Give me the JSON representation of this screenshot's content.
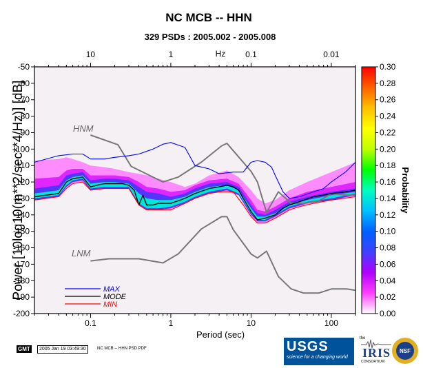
{
  "chart_data": {
    "type": "heatmap",
    "title": "NC MCB -- HHN",
    "subtitle": "329 PSDs : 2005.002 - 2005.008",
    "xlabel": "Period (sec)",
    "ylabel": "Power [10log10(m**2/sec**4/Hz)] [dB]",
    "top_axis_label": "Hz",
    "xscale": "log",
    "xlim": [
      0.02,
      200
    ],
    "ylim": [
      -200,
      -50
    ],
    "x_tick_labels": [
      "0.1",
      "1",
      "10",
      "100"
    ],
    "x_tick_values": [
      0.1,
      1,
      10,
      100
    ],
    "top_tick_labels": [
      "10",
      "1",
      "0.1",
      "0.01"
    ],
    "top_tick_periods": [
      0.1,
      1,
      10,
      100
    ],
    "y_tick_values": [
      -50,
      -60,
      -70,
      -80,
      -90,
      -100,
      -110,
      -120,
      -130,
      -140,
      -150,
      -160,
      -170,
      -180,
      -190,
      -200
    ],
    "colorbar": {
      "label": "Probability",
      "range": [
        0,
        0.3
      ],
      "tick_labels": [
        "0.00",
        "0.02",
        "0.04",
        "0.06",
        "0.08",
        "0.10",
        "0.12",
        "0.14",
        "0.16",
        "0.18",
        "0.20",
        "0.22",
        "0.24",
        "0.26",
        "0.28",
        "0.30"
      ],
      "tick_values": [
        0,
        0.02,
        0.04,
        0.06,
        0.08,
        0.1,
        0.12,
        0.14,
        0.16,
        0.18,
        0.2,
        0.22,
        0.24,
        0.26,
        0.28,
        0.3
      ],
      "colors": [
        "#ffffff",
        "#ff40ff",
        "#b000ff",
        "#4040ff",
        "#0060ff",
        "#00c0ff",
        "#00ffc0",
        "#00ff00",
        "#c0ff00",
        "#ffff00",
        "#ffc000",
        "#ff6000",
        "#ff0000"
      ]
    },
    "series": [
      {
        "name": "MAX",
        "color": "#0000ff",
        "x": [
          0.02,
          0.04,
          0.06,
          0.08,
          0.1,
          0.15,
          0.2,
          0.3,
          0.4,
          0.6,
          0.8,
          1.0,
          1.5,
          2.0,
          3.0,
          4.0,
          6.0,
          8.0,
          10.0,
          12.0,
          15.0,
          18.0,
          20.0,
          25.0,
          30.0,
          40.0,
          60.0,
          80.0,
          100.0,
          150.0,
          200.0
        ],
        "y": [
          -108,
          -104,
          -103,
          -103,
          -106,
          -106,
          -105,
          -104,
          -103,
          -100,
          -97,
          -96,
          -99,
          -110,
          -112,
          -115,
          -114,
          -114,
          -108,
          -107,
          -108,
          -111,
          -116,
          -126,
          -130,
          -129,
          -126,
          -124,
          -120,
          -114,
          -108
        ]
      },
      {
        "name": "MODE",
        "color": "#000000",
        "x": [
          0.02,
          0.04,
          0.05,
          0.06,
          0.08,
          0.1,
          0.12,
          0.15,
          0.2,
          0.25,
          0.3,
          0.35,
          0.4,
          0.45,
          0.5,
          0.6,
          0.7,
          0.8,
          1.0,
          1.5,
          2.0,
          3.0,
          4.0,
          5.0,
          6.0,
          7.0,
          8.0,
          10.0,
          12.0,
          15.0,
          20.0,
          25.0,
          30.0,
          40.0,
          60.0,
          80.0,
          100.0,
          150.0,
          200.0
        ],
        "y": [
          -129,
          -127,
          -120,
          -118,
          -117,
          -123,
          -122,
          -121,
          -121,
          -121,
          -122,
          -125,
          -134,
          -128,
          -134,
          -134,
          -133,
          -133,
          -133,
          -130,
          -127,
          -124,
          -123,
          -122,
          -123,
          -125,
          -130,
          -138,
          -143,
          -142,
          -140,
          -136,
          -134,
          -132,
          -129,
          -128,
          -127,
          -126,
          -125
        ]
      },
      {
        "name": "MIN",
        "color": "#ff0000",
        "x": [
          0.02,
          0.04,
          0.05,
          0.06,
          0.08,
          0.1,
          0.15,
          0.2,
          0.3,
          0.4,
          0.5,
          0.7,
          1.0,
          1.5,
          2.0,
          3.0,
          4.0,
          6.0,
          8.0,
          10.0,
          12.0,
          15.0,
          20.0,
          30.0,
          40.0,
          60.0,
          100.0,
          200.0
        ],
        "y": [
          -131,
          -129,
          -124,
          -121,
          -120,
          -125,
          -124,
          -124,
          -124,
          -134,
          -137,
          -137,
          -137,
          -133,
          -130,
          -127,
          -126,
          -126,
          -134,
          -141,
          -145,
          -145,
          -142,
          -137,
          -135,
          -133,
          -131,
          -129
        ]
      }
    ],
    "models": [
      {
        "name": "HNM",
        "color": "#777777",
        "x": [
          0.1,
          0.22,
          0.32,
          0.8,
          1.24,
          2.4,
          4.3,
          5.0,
          6.0,
          10.0,
          12.0,
          15.6,
          21.9,
          31.6,
          45.0,
          70.0,
          101.0,
          154.0,
          328.0
        ],
        "y": [
          -91.5,
          -97.4,
          -110.5,
          -120.0,
          -117.0,
          -108.0,
          -98.0,
          -96.5,
          -101.0,
          -113.5,
          -120.0,
          -138.5,
          -126.0,
          -133.0,
          -133.0,
          -131.5,
          -127.0,
          -128.0,
          -128.0
        ]
      },
      {
        "name": "LNM",
        "color": "#777777",
        "x": [
          0.1,
          0.17,
          0.4,
          0.8,
          1.24,
          2.4,
          4.3,
          5.0,
          6.0,
          10.0,
          12.0,
          15.6,
          21.9,
          31.6,
          45.0,
          70.0,
          101.0,
          154.0,
          328.0
        ],
        "y": [
          -168.0,
          -166.7,
          -166.7,
          -169.2,
          -163.7,
          -148.6,
          -141.1,
          -141.1,
          -149.0,
          -163.8,
          -166.2,
          -162.1,
          -177.5,
          -185.0,
          -187.5,
          -187.5,
          -185.0,
          -185.0,
          -187.5
        ]
      }
    ],
    "heat_bands": [
      {
        "x": [
          0.02,
          0.04,
          0.05,
          0.06,
          0.08,
          0.1,
          0.15,
          0.2,
          0.3,
          0.4,
          0.5,
          0.7,
          1.0,
          1.5,
          2.0,
          3.0,
          5.0,
          7.0,
          10.0,
          12.0,
          15.0,
          20.0,
          30.0,
          50.0,
          100.0,
          200.0
        ],
        "low": [
          -131,
          -129,
          -124,
          -121,
          -120,
          -125,
          -124,
          -124,
          -124,
          -134,
          -137,
          -137,
          -137,
          -133,
          -130,
          -127,
          -126,
          -128,
          -141,
          -145,
          -145,
          -142,
          -137,
          -134,
          -131,
          -129
        ],
        "high": [
          -107,
          -106,
          -105,
          -106,
          -108,
          -110,
          -111,
          -112,
          -114,
          -115,
          -116,
          -118,
          -120,
          -123,
          -121,
          -116,
          -113,
          -117,
          -125,
          -130,
          -133,
          -131,
          -125,
          -120,
          -114,
          -108
        ],
        "probability": 0.015
      },
      {
        "x": [
          0.02,
          0.04,
          0.05,
          0.06,
          0.08,
          0.1,
          0.15,
          0.2,
          0.3,
          0.4,
          0.5,
          0.7,
          1.0,
          1.5,
          2.0,
          3.0,
          5.0,
          7.0,
          10.0,
          12.0,
          15.0,
          20.0,
          30.0,
          50.0,
          100.0,
          200.0
        ],
        "low": [
          -130,
          -128,
          -123,
          -120,
          -119,
          -124,
          -123,
          -123,
          -123,
          -133,
          -136,
          -136,
          -135,
          -132,
          -129,
          -126,
          -125,
          -127,
          -139,
          -143,
          -143,
          -141,
          -136,
          -133,
          -130,
          -128
        ],
        "high": [
          -118,
          -117,
          -113,
          -112,
          -112,
          -116,
          -116,
          -116,
          -117,
          -120,
          -123,
          -124,
          -126,
          -125,
          -122,
          -119,
          -118,
          -121,
          -131,
          -137,
          -138,
          -135,
          -130,
          -126,
          -123,
          -120
        ],
        "probability": 0.035
      },
      {
        "x": [
          0.02,
          0.04,
          0.05,
          0.06,
          0.08,
          0.1,
          0.15,
          0.2,
          0.3,
          0.4,
          0.5,
          0.7,
          1.0,
          1.5,
          2.0,
          3.0,
          5.0,
          7.0,
          10.0,
          12.0,
          15.0,
          20.0,
          30.0,
          50.0,
          100.0,
          200.0
        ],
        "low": [
          -131,
          -129,
          -123,
          -120,
          -119,
          -125,
          -124,
          -124,
          -124,
          -134,
          -137,
          -137,
          -136,
          -133,
          -130,
          -127,
          -125,
          -128,
          -140,
          -144,
          -144,
          -141,
          -136,
          -133,
          -131,
          -128
        ],
        "high": [
          -124,
          -122,
          -116,
          -115,
          -114,
          -119,
          -118,
          -118,
          -119,
          -123,
          -126,
          -127,
          -129,
          -127,
          -124,
          -121,
          -120,
          -123,
          -134,
          -139,
          -140,
          -137,
          -132,
          -129,
          -126,
          -124
        ],
        "probability": 0.07
      },
      {
        "x": [
          0.02,
          0.04,
          0.05,
          0.06,
          0.08,
          0.1,
          0.15,
          0.2,
          0.3,
          0.4,
          0.5,
          0.7,
          1.0,
          1.5,
          2.0,
          3.0,
          5.0,
          7.0,
          10.0,
          12.0,
          15.0,
          20.0,
          30.0,
          50.0,
          100.0,
          200.0
        ],
        "low": [
          -130,
          -128,
          -122,
          -119,
          -118,
          -124,
          -123,
          -123,
          -123,
          -133,
          -136,
          -136,
          -135,
          -132,
          -129,
          -126,
          -124,
          -127,
          -139,
          -143,
          -143,
          -140,
          -135,
          -132,
          -130,
          -127
        ],
        "high": [
          -127,
          -125,
          -119,
          -117,
          -116,
          -121,
          -120,
          -120,
          -121,
          -127,
          -130,
          -131,
          -131,
          -129,
          -126,
          -123,
          -122,
          -125,
          -136,
          -141,
          -141,
          -139,
          -134,
          -131,
          -128,
          -126
        ],
        "probability": 0.14
      }
    ]
  },
  "legend": [
    {
      "label": "MAX",
      "color": "#0000ff"
    },
    {
      "label": "MODE",
      "color": "#000000"
    },
    {
      "label": "MIN",
      "color": "#ff0000"
    }
  ],
  "model_labels": {
    "hnm": "HNM",
    "lnm": "LNM"
  },
  "footer": {
    "gmt": "GMT",
    "timestamp": "2005 Jan 19 03:49:30",
    "caption": "NC MCB -- HHN PSD PDF"
  },
  "logos": {
    "usgs_name": "USGS",
    "usgs_tagline": "science for a changing world",
    "iris_the": "the",
    "iris_name": "IRIS",
    "iris_sub": "CONSORTIUM",
    "nsf_name": "NSF"
  }
}
